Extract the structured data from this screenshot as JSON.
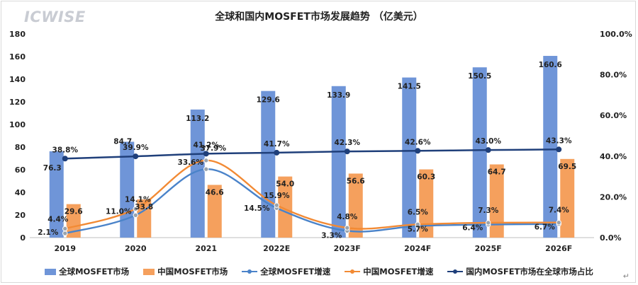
{
  "watermark": "ICWISE",
  "title": "全球和国内MOSFET市场发展趋势 （亿美元）",
  "enter_mark": "↵",
  "chart_data": {
    "type": "bar",
    "title": "全球和国内MOSFET市场发展趋势 （亿美元）",
    "categories": [
      "2019",
      "2020",
      "2021",
      "2022E",
      "2023F",
      "2024F",
      "2025F",
      "2026F"
    ],
    "ylim": [
      0,
      180
    ],
    "yticks": [
      0,
      20,
      40,
      60,
      80,
      100,
      120,
      140,
      160,
      180
    ],
    "y2lim": [
      0,
      100
    ],
    "y2ticks": [
      "0.0%",
      "20.0%",
      "40.0%",
      "60.0%",
      "80.0%",
      "100.0%"
    ],
    "y2tick_values": [
      0,
      20,
      40,
      60,
      80,
      100
    ],
    "grid": false,
    "legend_position": "bottom",
    "series": [
      {
        "name": "全球MOSFET市场",
        "kind": "bar",
        "axis": "left",
        "color": "#6f95d8",
        "values": [
          76.3,
          84.7,
          113.2,
          129.6,
          133.9,
          141.5,
          150.5,
          160.6
        ],
        "labels": [
          "76.3",
          "84.7",
          "113.2",
          "129.6",
          "133.9",
          "141.5",
          "150.5",
          "160.6"
        ]
      },
      {
        "name": "中国MOSFET市场",
        "kind": "bar",
        "axis": "left",
        "color": "#f5a05d",
        "values": [
          29.6,
          33.8,
          46.6,
          54.0,
          56.6,
          60.3,
          64.7,
          69.5
        ],
        "labels": [
          "29.6",
          "33.8",
          "46.6",
          "54.0",
          "56.6",
          "60.3",
          "64.7",
          "69.5"
        ]
      },
      {
        "name": "全球MOSFET增速",
        "kind": "line",
        "axis": "right",
        "color": "#4a83c9",
        "values": [
          2.1,
          11.0,
          33.6,
          14.5,
          3.3,
          5.7,
          6.4,
          6.7
        ],
        "labels": [
          "2.1%",
          "11.0%",
          "33.6%",
          "14.5%",
          "3.3%",
          "5.7%",
          "6.4%",
          "6.7%"
        ]
      },
      {
        "name": "中国MOSFET增速",
        "kind": "line",
        "axis": "right",
        "color": "#f28a34",
        "values": [
          4.4,
          14.1,
          37.9,
          15.9,
          4.8,
          6.5,
          7.3,
          7.4
        ],
        "labels": [
          "4.4%",
          "14.1%",
          "37.9%",
          "15.9%",
          "4.8%",
          "6.5%",
          "7.3%",
          "7.4%"
        ]
      },
      {
        "name": "国内MOSFET市场在全球市场占比",
        "kind": "line",
        "axis": "right",
        "color": "#1f3f7a",
        "values": [
          38.8,
          39.9,
          41.2,
          41.7,
          42.3,
          42.6,
          43.0,
          43.3
        ],
        "labels": [
          "38.8%",
          "39.9%",
          "41.2%",
          "41.7%",
          "42.3%",
          "42.6%",
          "43.0%",
          "43.3%"
        ]
      }
    ]
  }
}
